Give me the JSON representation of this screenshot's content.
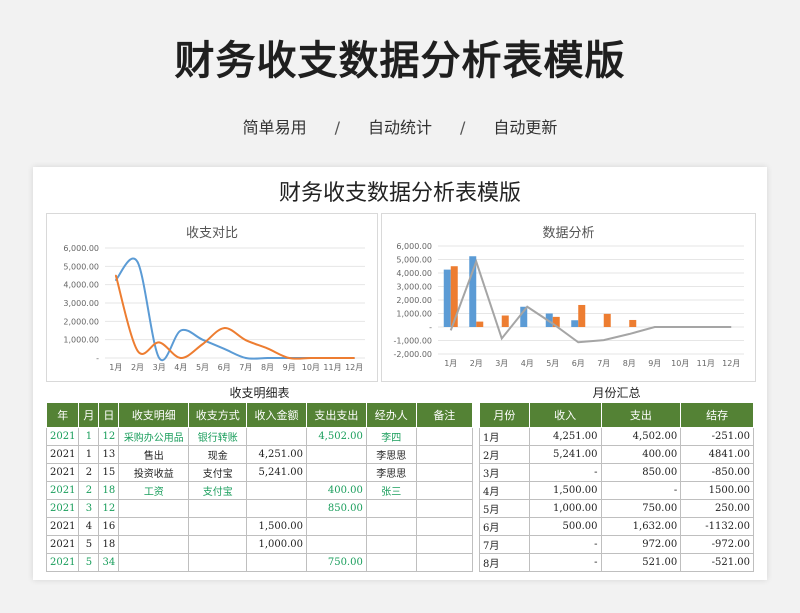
{
  "hero": {
    "title": "财务收支数据分析表模版"
  },
  "tagline": {
    "items": [
      "简单易用",
      "自动统计",
      "自动更新"
    ],
    "separator": "/"
  },
  "sheet": {
    "title": "财务收支数据分析表模版"
  },
  "detail_table": {
    "label": "收支明细表",
    "headers": [
      "年",
      "月",
      "日",
      "收支明细",
      "收支方式",
      "收入金额",
      "支出支出",
      "经办人",
      "备注"
    ],
    "rows": [
      {
        "year": "2021",
        "month": "1",
        "day": "12",
        "item": "采购办公用品",
        "method": "银行转账",
        "income": "",
        "expense": "4,502.00",
        "handler": "李四",
        "note": "",
        "green": true
      },
      {
        "year": "2021",
        "month": "1",
        "day": "13",
        "item": "售出",
        "method": "现金",
        "income": "4,251.00",
        "expense": "",
        "handler": "李思思",
        "note": "",
        "green": false
      },
      {
        "year": "2021",
        "month": "2",
        "day": "15",
        "item": "投资收益",
        "method": "支付宝",
        "income": "5,241.00",
        "expense": "",
        "handler": "李思思",
        "note": "",
        "green": false
      },
      {
        "year": "2021",
        "month": "2",
        "day": "18",
        "item": "工资",
        "method": "支付宝",
        "income": "",
        "expense": "400.00",
        "handler": "张三",
        "note": "",
        "green": true
      },
      {
        "year": "2021",
        "month": "3",
        "day": "12",
        "item": "",
        "method": "",
        "income": "",
        "expense": "850.00",
        "handler": "",
        "note": "",
        "green": true
      },
      {
        "year": "2021",
        "month": "4",
        "day": "16",
        "item": "",
        "method": "",
        "income": "1,500.00",
        "expense": "",
        "handler": "",
        "note": "",
        "green": false
      },
      {
        "year": "2021",
        "month": "5",
        "day": "18",
        "item": "",
        "method": "",
        "income": "1,000.00",
        "expense": "",
        "handler": "",
        "note": "",
        "green": false
      },
      {
        "year": "2021",
        "month": "5",
        "day": "34",
        "item": "",
        "method": "",
        "income": "",
        "expense": "750.00",
        "handler": "",
        "note": "",
        "green": true
      }
    ]
  },
  "summary_table": {
    "label": "月份汇总",
    "headers": [
      "月份",
      "收入",
      "支出",
      "结存"
    ],
    "rows": [
      {
        "month": "1月",
        "income": "4,251.00",
        "expense": "4,502.00",
        "balance": "-251.00"
      },
      {
        "month": "2月",
        "income": "5,241.00",
        "expense": "400.00",
        "balance": "4841.00"
      },
      {
        "month": "3月",
        "income": "-",
        "expense": "850.00",
        "balance": "-850.00"
      },
      {
        "month": "4月",
        "income": "1,500.00",
        "expense": "-",
        "balance": "1500.00"
      },
      {
        "month": "5月",
        "income": "1,000.00",
        "expense": "750.00",
        "balance": "250.00"
      },
      {
        "month": "6月",
        "income": "500.00",
        "expense": "1,632.00",
        "balance": "-1132.00"
      },
      {
        "month": "7月",
        "income": "-",
        "expense": "972.00",
        "balance": "-972.00"
      },
      {
        "month": "8月",
        "income": "-",
        "expense": "521.00",
        "balance": "-521.00"
      }
    ]
  },
  "colors": {
    "income": "#5b9bd5",
    "expense": "#ed7d31",
    "balance": "#a5a5a5",
    "header_green": "#548235",
    "green_text": "#1a9e5c"
  },
  "chart_data": [
    {
      "type": "line",
      "title": "收支对比",
      "categories": [
        "1月",
        "2月",
        "3月",
        "4月",
        "5月",
        "6月",
        "7月",
        "8月",
        "9月",
        "10月",
        "11月",
        "12月"
      ],
      "yticks": [
        "6,000.00",
        "5,000.00",
        "4,000.00",
        "3,000.00",
        "2,000.00",
        "1,000.00",
        "-"
      ],
      "ylim": [
        0,
        6000
      ],
      "series": [
        {
          "values": [
            4251,
            5241,
            0,
            1500,
            1000,
            500,
            0,
            0,
            0,
            0,
            0,
            0
          ],
          "color": "#5b9bd5"
        },
        {
          "values": [
            4502,
            400,
            850,
            0,
            750,
            1632,
            972,
            521,
            0,
            0,
            0,
            0
          ],
          "color": "#ed7d31"
        }
      ]
    },
    {
      "type": "bar",
      "title": "数据分析",
      "categories": [
        "1月",
        "2月",
        "3月",
        "4月",
        "5月",
        "6月",
        "7月",
        "8月",
        "9月",
        "10月",
        "11月",
        "12月"
      ],
      "yticks": [
        "6,000.00",
        "5,000.00",
        "4,000.00",
        "3,000.00",
        "2,000.00",
        "1,000.00",
        "-",
        "-1,000.00",
        "-2,000.00"
      ],
      "ylim": [
        -2000,
        6000
      ],
      "series": [
        {
          "type": "bar",
          "values": [
            4251,
            5241,
            0,
            1500,
            1000,
            500,
            0,
            0,
            0,
            0,
            0,
            0
          ],
          "color": "#5b9bd5"
        },
        {
          "type": "bar",
          "values": [
            4502,
            400,
            850,
            0,
            750,
            1632,
            972,
            521,
            0,
            0,
            0,
            0
          ],
          "color": "#ed7d31"
        },
        {
          "type": "line",
          "values": [
            -251,
            4841,
            -850,
            1500,
            250,
            -1132,
            -972,
            -521,
            0,
            0,
            0,
            0
          ],
          "color": "#a5a5a5"
        }
      ]
    }
  ]
}
